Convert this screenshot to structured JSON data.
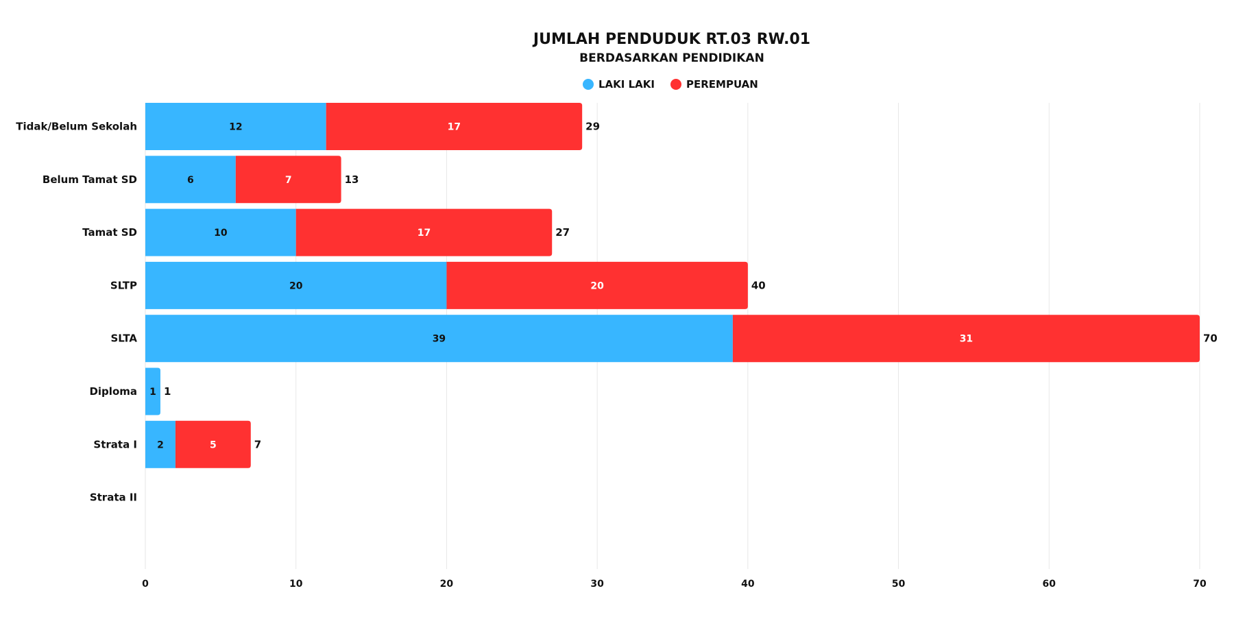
{
  "chart_data": {
    "type": "bar",
    "orientation": "horizontal",
    "stacked": true,
    "title": "JUMLAH PENDUDUK RT.03 RW.01",
    "subtitle": "BERDASARKAN PENDIDIKAN",
    "xlabel": "",
    "ylabel": "",
    "xlim": [
      0,
      70
    ],
    "xticks": [
      0,
      10,
      20,
      30,
      40,
      50,
      60,
      70
    ],
    "grid": true,
    "legend_position": "top-center",
    "categories": [
      "Tidak/Belum Sekolah",
      "Belum Tamat SD",
      "Tamat SD",
      "SLTP",
      "SLTA",
      "Diploma",
      "Strata I",
      "Strata II"
    ],
    "series": [
      {
        "name": "LAKI LAKI",
        "color": "#38B6FF",
        "label_color": "#111111",
        "values": [
          12,
          6,
          10,
          20,
          39,
          1,
          2,
          0
        ]
      },
      {
        "name": "PEREMPUAN",
        "color": "#FF3131",
        "label_color": "#ffffff",
        "values": [
          17,
          7,
          17,
          20,
          31,
          0,
          5,
          0
        ]
      }
    ],
    "totals": [
      29,
      13,
      27,
      40,
      70,
      1,
      7,
      0
    ]
  }
}
